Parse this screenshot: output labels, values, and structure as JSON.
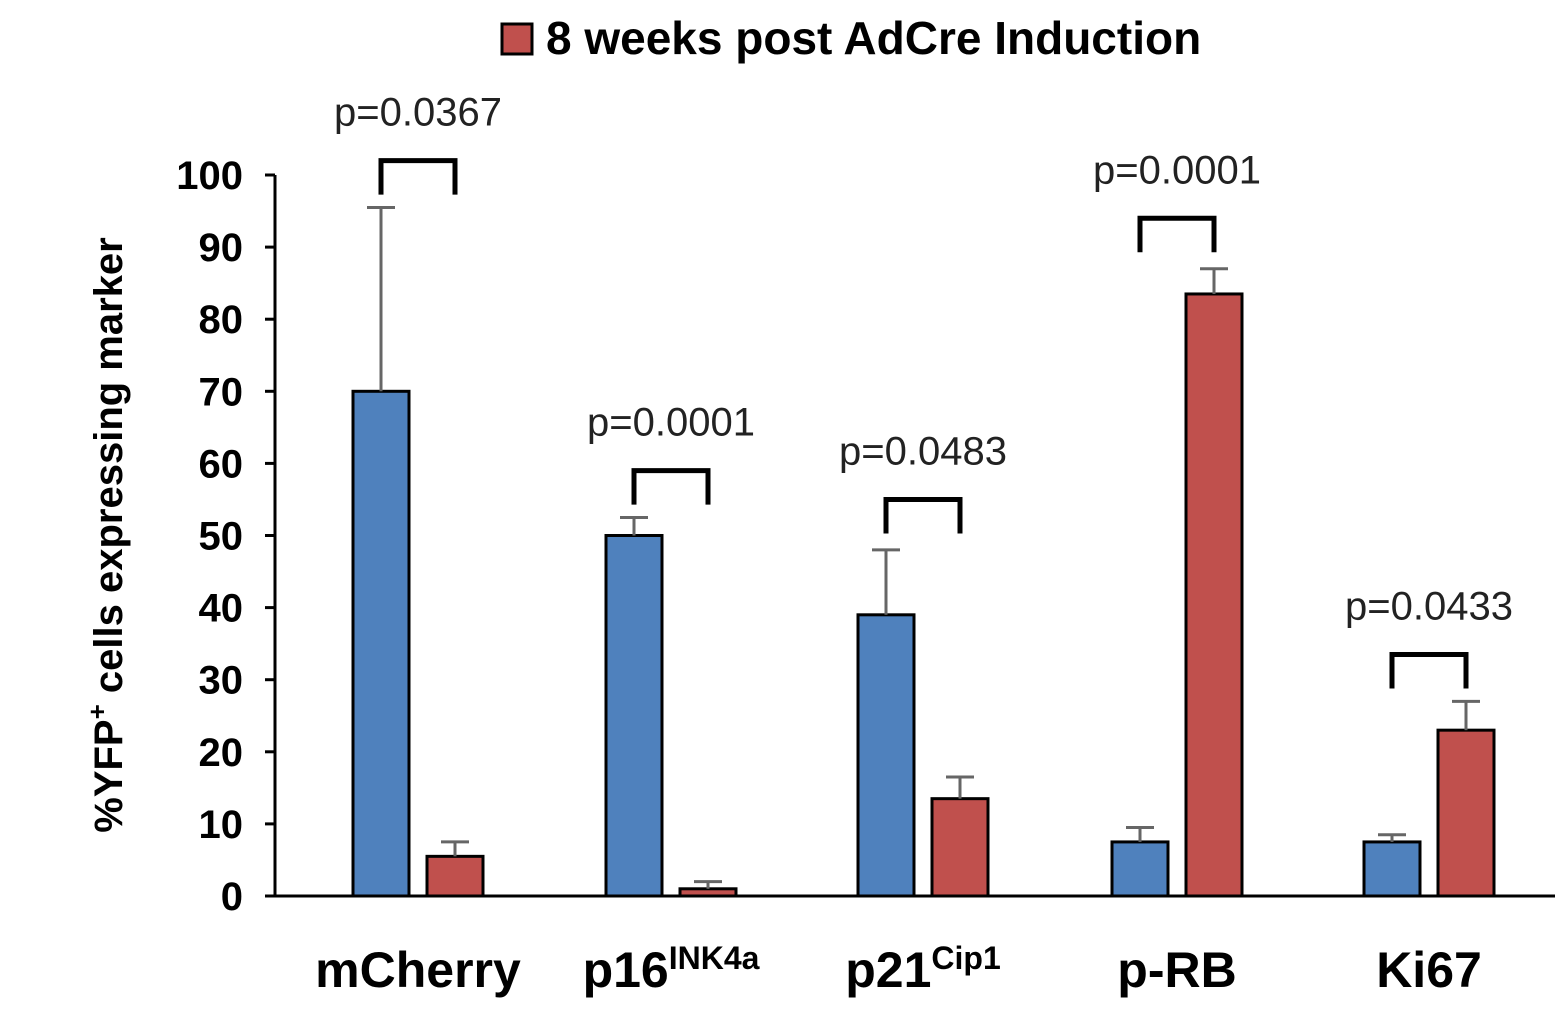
{
  "chart_data": {
    "type": "bar",
    "categories": [
      {
        "base": "mCherry",
        "sup": ""
      },
      {
        "base": "p16",
        "sup": "INK4a"
      },
      {
        "base": "p21",
        "sup": "Cip1"
      },
      {
        "base": "p-RB",
        "sup": ""
      },
      {
        "base": "Ki67",
        "sup": ""
      }
    ],
    "series": [
      {
        "name": "",
        "color": "#4F81BD",
        "values": [
          70,
          50,
          39,
          7.5,
          7.5
        ],
        "errors": [
          25.5,
          2.5,
          9,
          2,
          1
        ]
      },
      {
        "name": "8 weeks post AdCre Induction",
        "color": "#C0504D",
        "values": [
          5.5,
          1,
          13.5,
          83.5,
          23
        ],
        "errors": [
          2,
          1,
          3,
          3.5,
          4
        ]
      }
    ],
    "p_values": [
      "p=0.0367",
      "p=0.0001",
      "p=0.0483",
      "p=0.0001",
      "p=0.0433"
    ],
    "bracket_top": [
      102,
      59,
      55,
      94,
      33.5
    ],
    "ylabel_parts": [
      "%YFP",
      "+",
      " cells expressing marker"
    ],
    "ylim": [
      0,
      100
    ],
    "yticks": [
      0,
      10,
      20,
      30,
      40,
      50,
      60,
      70,
      80,
      90,
      100
    ],
    "legend_position": "top-center"
  }
}
